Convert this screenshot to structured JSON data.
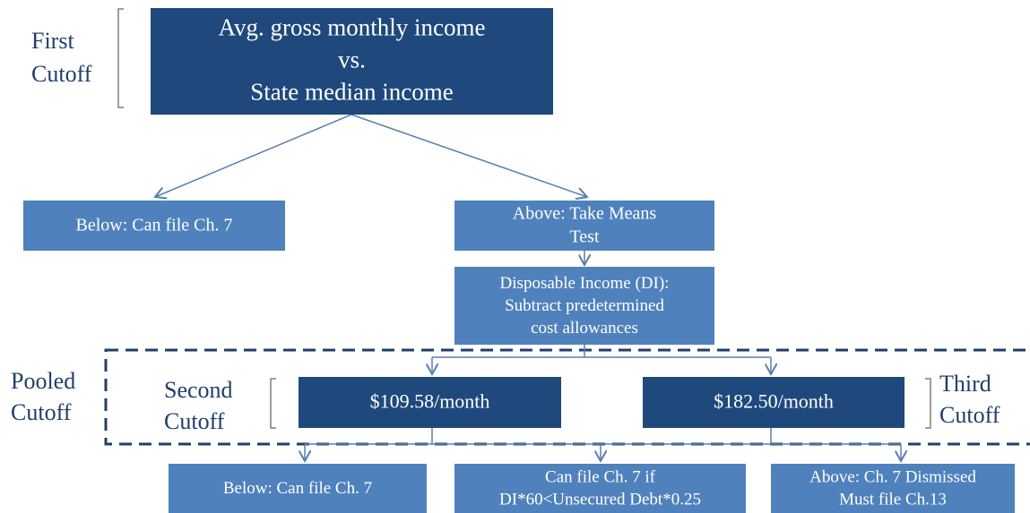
{
  "nodes": [
    {
      "lines": [
        "Avg. gross monthly income",
        "vs.",
        "State median income"
      ]
    },
    {
      "lines": [
        "Below: Can file Ch. 7"
      ]
    },
    {
      "lines": [
        "Above: Take Means",
        "Test"
      ]
    },
    {
      "lines": [
        "Disposable Income (DI):",
        "Subtract  predetermined",
        "cost allowances"
      ]
    },
    {
      "lines": [
        "$109.58/month"
      ]
    },
    {
      "lines": [
        "$182.50/month"
      ]
    },
    {
      "lines": [
        "Below: Can file Ch. 7"
      ]
    },
    {
      "lines": [
        "Can file Ch. 7 if",
        "DI*60<Unsecured Debt*0.25"
      ]
    },
    {
      "lines": [
        "Above: Ch. 7 Dismissed",
        "Must file Ch.13"
      ]
    }
  ],
  "labels": [
    {
      "lines": [
        "First",
        "Cutoff"
      ]
    },
    {
      "lines": [
        "Pooled",
        "Cutoff"
      ]
    },
    {
      "lines": [
        "Second",
        "Cutoff"
      ]
    },
    {
      "lines": [
        "Third",
        "Cutoff"
      ]
    }
  ]
}
